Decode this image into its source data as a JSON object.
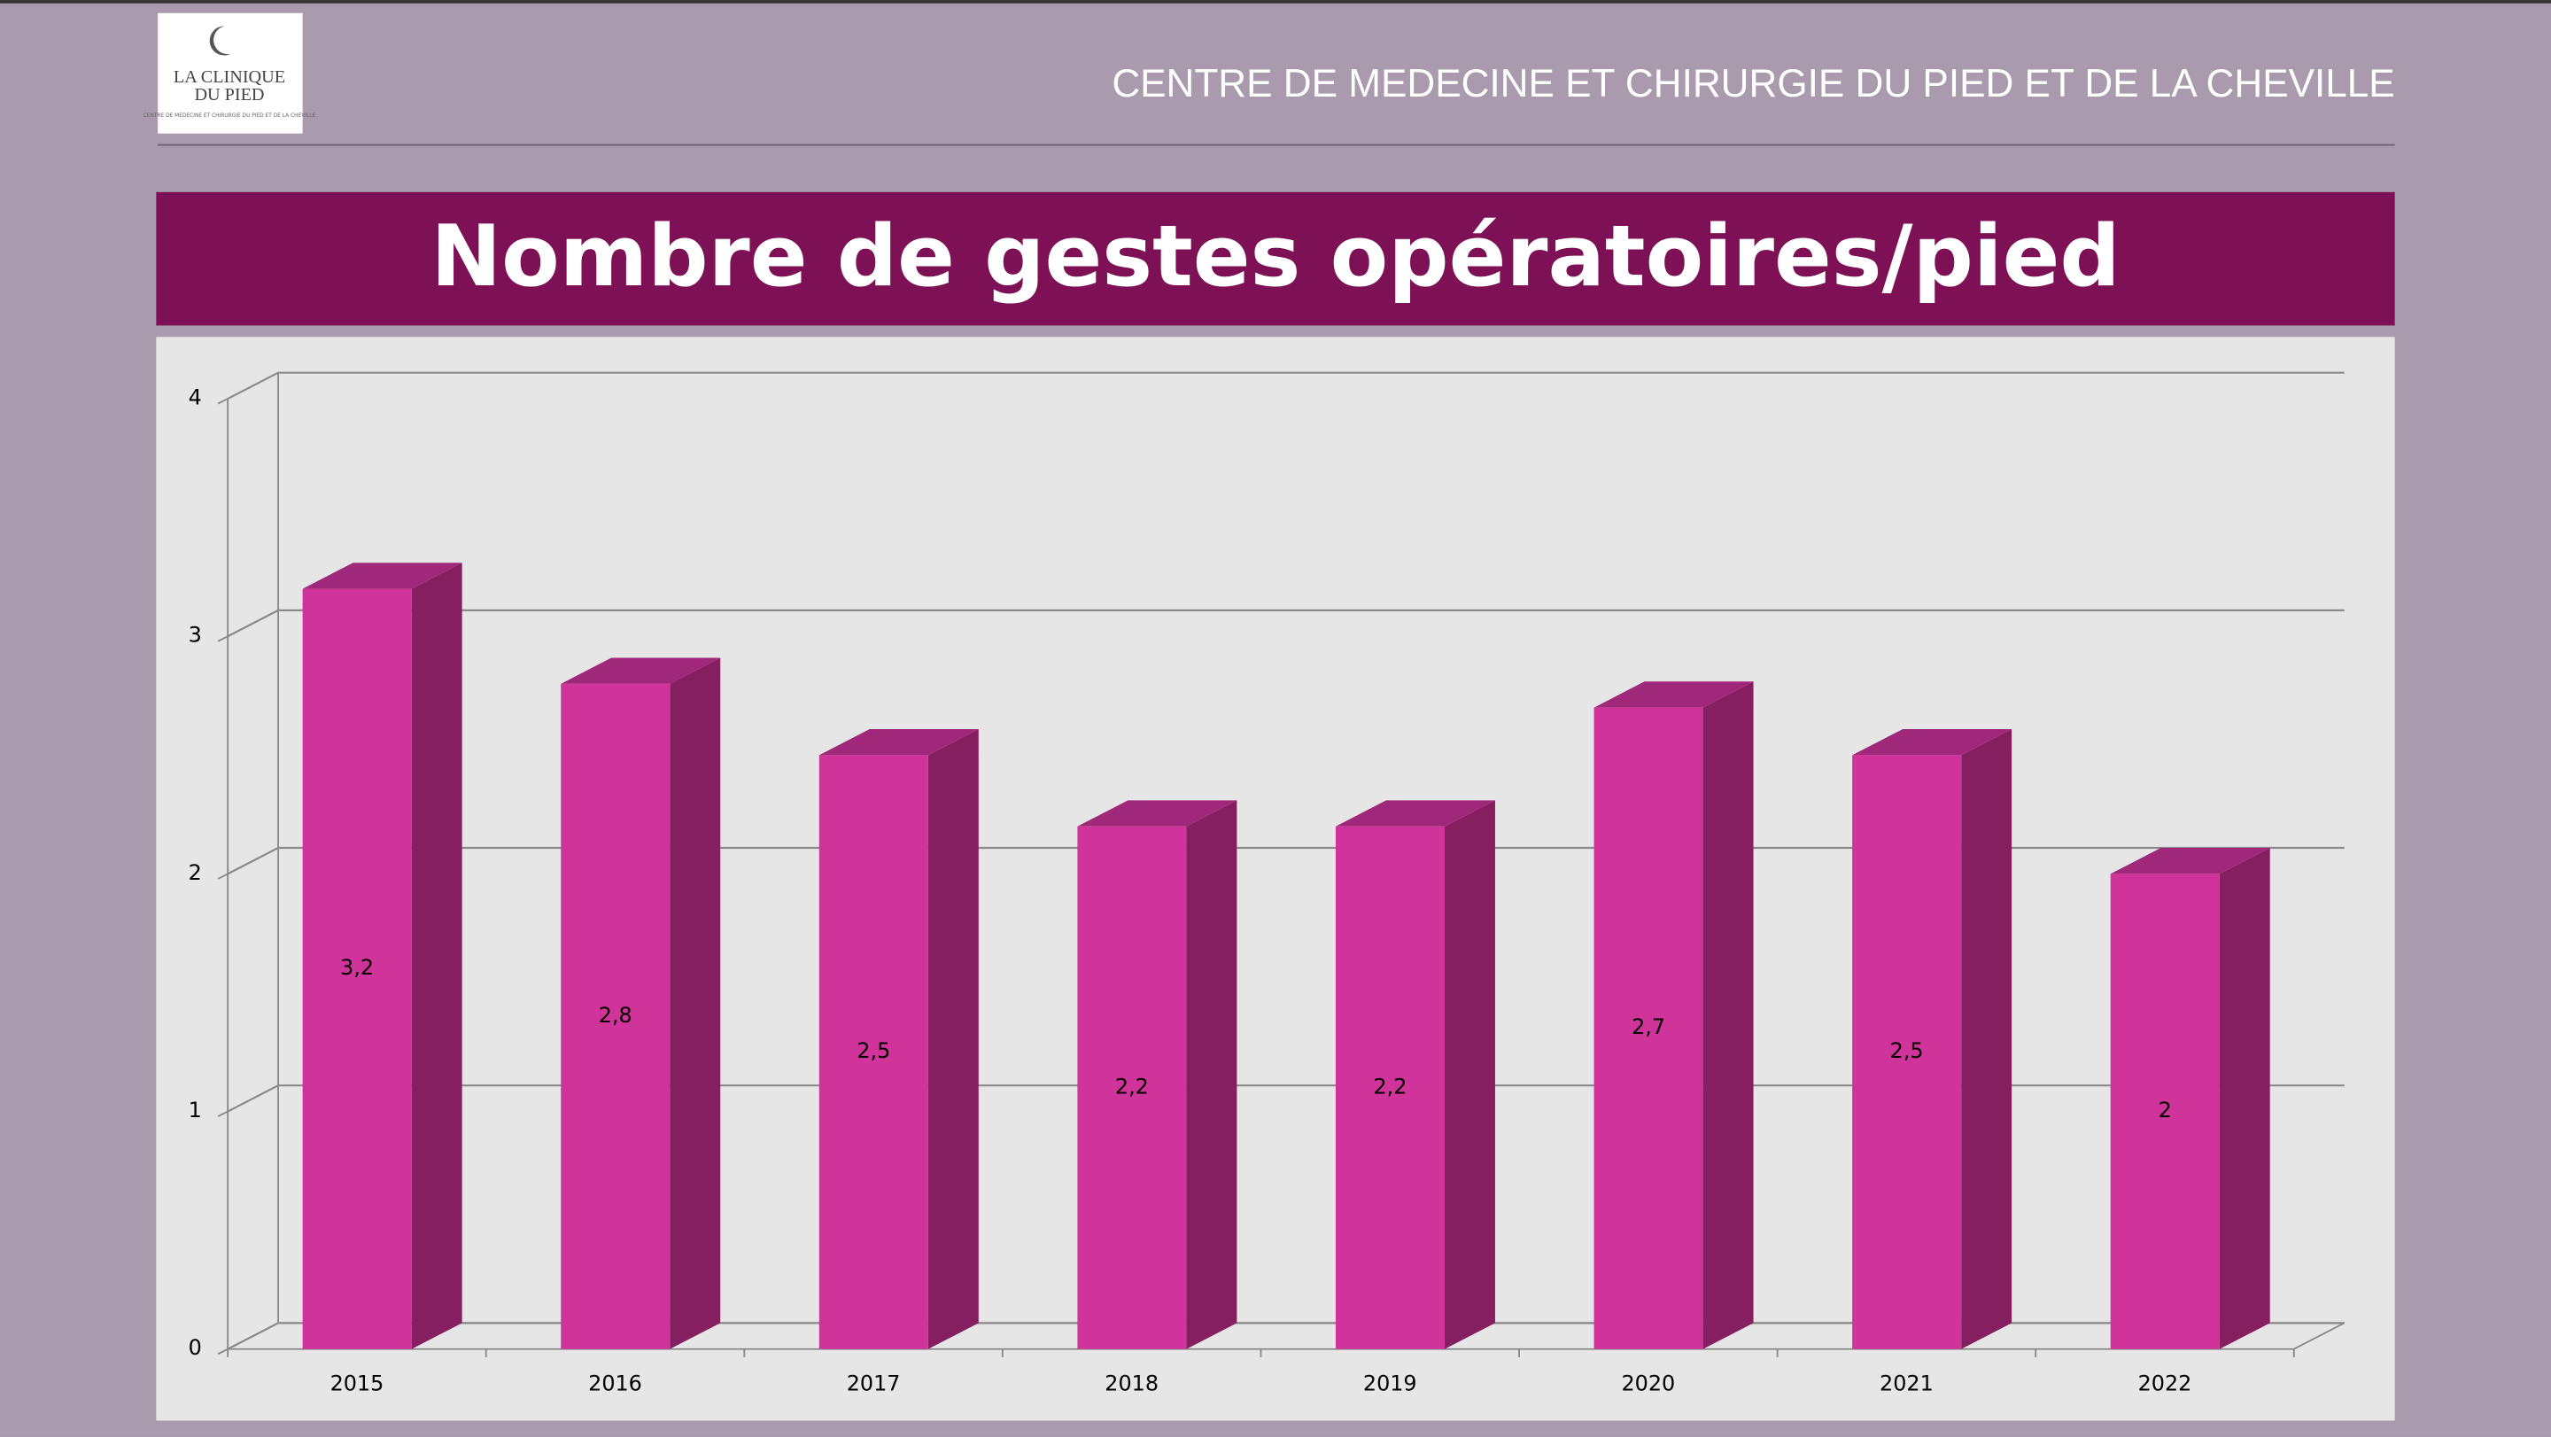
{
  "logo": {
    "line1": "LA CLINIQUE",
    "line2": "DU PIED",
    "tagline": "CENTRE DE MEDECINE ET CHIRURGIE DU PIED ET DE LA CHEVILLE"
  },
  "header": "CENTRE DE MEDECINE ET CHIRURGIE DU PIED ET DE LA CHEVILLE",
  "chart_data": {
    "type": "bar3d",
    "title": "Nombre de gestes opératoires/pied",
    "categories": [
      "2015",
      "2016",
      "2017",
      "2018",
      "2019",
      "2020",
      "2021",
      "2022"
    ],
    "values": [
      3.2,
      2.8,
      2.5,
      2.2,
      2.2,
      2.7,
      2.5,
      2
    ],
    "value_labels": [
      "3,2",
      "2,8",
      "2,5",
      "2,2",
      "2,2",
      "2,7",
      "2,5",
      "2"
    ],
    "color": "#d03399",
    "ylim": [
      0,
      4
    ],
    "yticks": [
      0,
      1,
      2,
      3,
      4
    ],
    "grid": true
  }
}
